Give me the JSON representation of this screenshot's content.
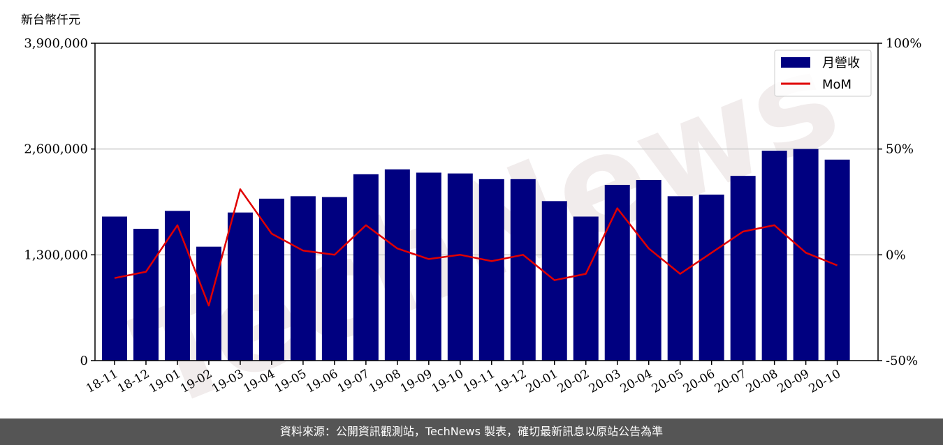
{
  "unit_label": "新台幣仟元",
  "footer_text": "資料來源：公開資訊觀測站，TechNews 製表，確切最新訊息以原站公告為準",
  "watermark_text": "TechNews",
  "colors": {
    "bar": "#000080",
    "line": "#e00000",
    "grid": "#cccccc",
    "footer_bg": "#555555"
  },
  "chart_data": {
    "type": "bar",
    "categories": [
      "18-11",
      "18-12",
      "19-01",
      "19-02",
      "19-03",
      "19-04",
      "19-05",
      "19-06",
      "19-07",
      "19-08",
      "19-09",
      "19-10",
      "19-11",
      "19-12",
      "20-01",
      "20-02",
      "20-03",
      "20-04",
      "20-05",
      "20-06",
      "20-07",
      "20-08",
      "20-09",
      "20-10"
    ],
    "series": [
      {
        "name": "月營收",
        "type": "bar",
        "axis": "left",
        "values": [
          1770000,
          1620000,
          1840000,
          1400000,
          1820000,
          1990000,
          2020000,
          2010000,
          2290000,
          2350000,
          2310000,
          2300000,
          2230000,
          2230000,
          1960000,
          1770000,
          2160000,
          2220000,
          2020000,
          2040000,
          2270000,
          2580000,
          2600000,
          2470000
        ]
      },
      {
        "name": "MoM",
        "type": "line",
        "axis": "right",
        "values": [
          -11,
          -8,
          14,
          -24,
          31,
          10,
          2,
          0,
          14,
          3,
          -2,
          0,
          -3,
          0,
          -12,
          -9,
          22,
          3,
          -9,
          1,
          11,
          14,
          1,
          -5
        ]
      }
    ],
    "yleft": {
      "lim": [
        0,
        3900000
      ],
      "ticks": [
        0,
        1300000,
        2600000,
        3900000
      ],
      "tick_labels": [
        "0",
        "1,300,000",
        "2,600,000",
        "3,900,000"
      ]
    },
    "yright": {
      "lim": [
        -50,
        100
      ],
      "ticks": [
        -50,
        0,
        50,
        100
      ],
      "tick_labels": [
        "-50%",
        "0%",
        "50%",
        "100%"
      ]
    },
    "grid": true,
    "legend_position": "top-right"
  }
}
